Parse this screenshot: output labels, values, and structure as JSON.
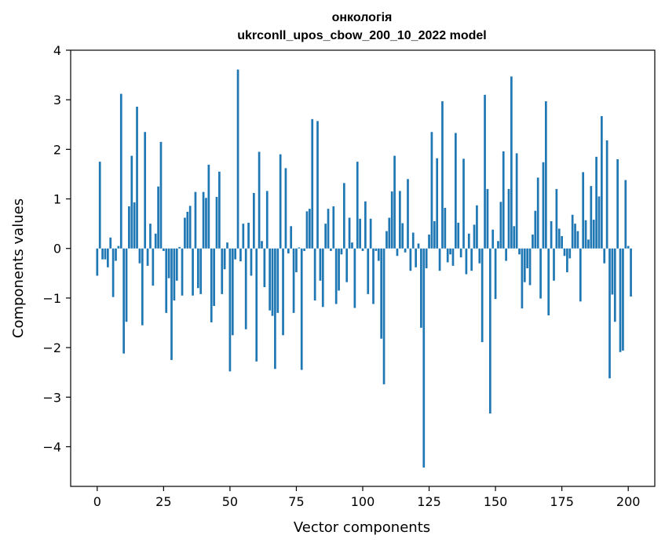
{
  "chart_data": {
    "type": "bar",
    "title": [
      "онкологія",
      "ukrconll_upos_cbow_200_10_2022 model"
    ],
    "xlabel": "Vector components",
    "ylabel": "Components values",
    "xlim": [
      -10,
      210
    ],
    "ylim": [
      -4.8,
      4.0
    ],
    "xticks": [
      0,
      25,
      50,
      75,
      100,
      125,
      150,
      175,
      200
    ],
    "yticks": [
      -4,
      -3,
      -2,
      -1,
      0,
      1,
      2,
      3,
      4
    ],
    "xtick_labels": [
      "0",
      "25",
      "50",
      "75",
      "100",
      "125",
      "150",
      "175",
      "200"
    ],
    "ytick_labels": [
      "−4",
      "−3",
      "−2",
      "−1",
      "0",
      "1",
      "2",
      "3",
      "4"
    ],
    "grid": false,
    "bar_color": "#1f77b4",
    "values": [
      -0.55,
      1.75,
      -0.22,
      -0.22,
      -0.38,
      0.22,
      -0.98,
      -0.25,
      0.05,
      3.12,
      -2.12,
      -1.48,
      0.85,
      1.87,
      0.93,
      2.86,
      -0.3,
      -1.55,
      2.35,
      -0.35,
      0.5,
      -0.75,
      0.3,
      1.25,
      2.15,
      -0.05,
      -1.3,
      -0.6,
      -2.25,
      -1.05,
      -0.65,
      0.03,
      -0.95,
      0.62,
      0.74,
      0.86,
      -0.95,
      1.14,
      -0.8,
      -0.92,
      1.14,
      1.02,
      1.69,
      -1.49,
      -1.16,
      1.04,
      1.55,
      -0.92,
      -0.42,
      0.12,
      -2.48,
      -1.75,
      -0.22,
      3.61,
      -0.26,
      0.5,
      -1.63,
      0.52,
      -0.55,
      1.12,
      -2.28,
      1.95,
      0.15,
      -0.78,
      1.16,
      -1.25,
      -1.36,
      -2.43,
      -1.3,
      1.9,
      -1.75,
      1.62,
      -0.1,
      0.45,
      -1.3,
      -0.48,
      0.02,
      -2.45,
      -0.05,
      0.75,
      0.8,
      2.61,
      -1.05,
      2.57,
      -0.65,
      -1.18,
      0.5,
      0.8,
      -0.05,
      0.85,
      -1.12,
      -0.85,
      -0.12,
      1.32,
      -0.68,
      0.62,
      0.12,
      -1.2,
      1.75,
      0.6,
      -0.05,
      0.95,
      -0.92,
      0.6,
      -1.12,
      -0.05,
      -0.25,
      -1.82,
      -2.74,
      0.35,
      0.62,
      1.15,
      1.87,
      -0.15,
      1.16,
      0.51,
      -0.08,
      1.4,
      -0.45,
      0.32,
      -0.38,
      0.1,
      -1.6,
      -4.42,
      -0.4,
      0.28,
      2.35,
      0.55,
      1.82,
      -0.45,
      2.97,
      0.82,
      -0.28,
      -0.12,
      -0.35,
      2.33,
      0.52,
      -0.18,
      1.81,
      -0.52,
      0.3,
      -0.45,
      0.48,
      0.87,
      -0.3,
      -1.89,
      3.1,
      1.2,
      -3.33,
      0.38,
      -1.02,
      0.15,
      0.94,
      1.96,
      -0.25,
      1.2,
      3.47,
      0.45,
      1.92,
      -0.12,
      -1.21,
      -0.68,
      -0.4,
      -0.74,
      0.28,
      0.76,
      1.43,
      -1.01,
      1.74,
      2.97,
      -1.35,
      0.55,
      -0.65,
      1.2,
      0.4,
      0.25,
      -0.15,
      -0.48,
      -0.2,
      0.68,
      0.5,
      0.35,
      -1.07,
      1.54,
      0.57,
      0.18,
      1.26,
      0.58,
      1.85,
      1.05,
      2.67,
      -0.3,
      2.18,
      -2.62,
      -0.93,
      -1.48,
      1.8,
      -2.09,
      -2.06,
      1.38,
      0.05,
      -0.97
    ]
  }
}
